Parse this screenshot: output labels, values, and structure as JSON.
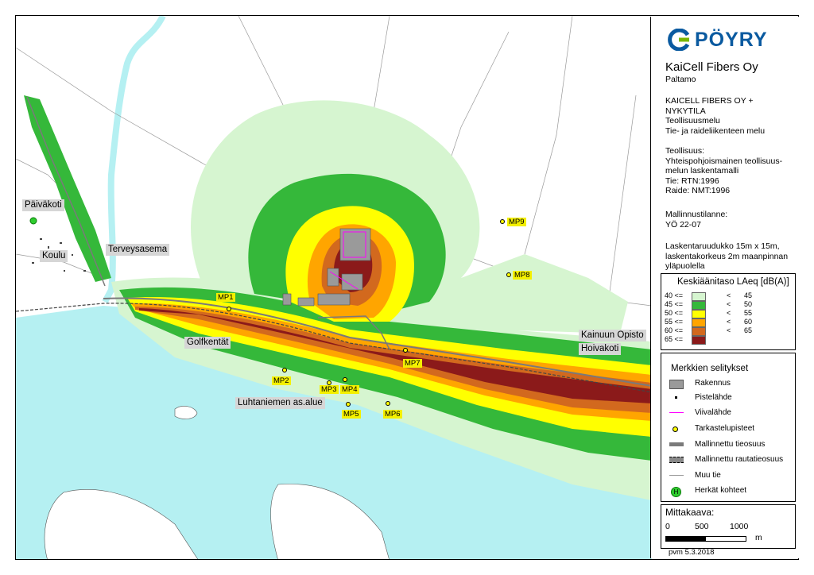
{
  "logo": {
    "text": "PÖYRY"
  },
  "header": {
    "company": "KaiCell Fibers Oy",
    "location": "Paltamo",
    "title_lines": [
      "KAICELL FIBERS OY +",
      "NYKYTILA",
      "Teollisuusmelu",
      "Tie- ja raideliikenteen melu"
    ],
    "model_lines": [
      "Teollisuus:",
      "Yhteispohjoismainen teollisuus-",
      "melun laskentamalli",
      "Tie: RTN:1996",
      "Raide: NMT:1996"
    ],
    "scenario_lines": [
      "Mallinnustilanne:",
      "YÖ 22-07"
    ],
    "grid_lines": [
      "Laskentaruudukko 15m x 15m,",
      "laskentakorkeus 2m maanpinnan",
      "yläpuolella"
    ]
  },
  "noise_legend": {
    "title": "Keskiäänitaso LAeq [dB(A)]",
    "items": [
      {
        "from": "40 <=",
        "op": "<",
        "to": "45",
        "color": "#d6f5d0"
      },
      {
        "from": "45 <=",
        "op": "<",
        "to": "50",
        "color": "#35b83a"
      },
      {
        "from": "50 <=",
        "op": "<",
        "to": "55",
        "color": "#ffff00"
      },
      {
        "from": "55 <=",
        "op": "<",
        "to": "60",
        "color": "#ffa500"
      },
      {
        "from": "60 <=",
        "op": "<",
        "to": "65",
        "color": "#d2691e"
      },
      {
        "from": "65 <=",
        "op": "",
        "to": "",
        "color": "#8b1a1a"
      }
    ]
  },
  "symbol_legend": {
    "title": "Merkkien selitykset",
    "items": [
      {
        "label": "Rakennus",
        "icon": "building-icon"
      },
      {
        "label": "Pistelähde",
        "icon": "point-source-icon"
      },
      {
        "label": "Viivalähde",
        "icon": "line-source-icon"
      },
      {
        "label": "Tarkastelupisteet",
        "icon": "check-point-icon"
      },
      {
        "label": "Mallinnettu tieosuus",
        "icon": "road-icon"
      },
      {
        "label": "Mallinnettu rautatieosuus",
        "icon": "railway-icon"
      },
      {
        "label": "Muu tie",
        "icon": "other-road-icon"
      },
      {
        "label": "Herkät kohteet",
        "icon": "sensitive-site-icon",
        "glyph": "H"
      }
    ]
  },
  "scale": {
    "title": "Mittakaava:",
    "ticks": [
      "0",
      "500",
      "1000"
    ],
    "unit": "m"
  },
  "date": "pvm 5.3.2018",
  "places": [
    {
      "label": "Päiväkoti"
    },
    {
      "label": "Koulu"
    },
    {
      "label": "Terveysasema"
    },
    {
      "label": "Golfkentät"
    },
    {
      "label": "Luhtaniemen as.alue"
    },
    {
      "label": "Kainuun Opisto"
    },
    {
      "label": "Hoivakoti"
    }
  ],
  "measure_points": [
    "MP1",
    "MP2",
    "MP3",
    "MP4",
    "MP5",
    "MP6",
    "MP7",
    "MP8",
    "MP9"
  ],
  "colors": {
    "water": "#b5f0f2",
    "zone40": "#d6f5d0",
    "zone45": "#35b83a",
    "zone50": "#ffff00",
    "zone55": "#ffa500",
    "zone60": "#d2691e",
    "zone65": "#8b1a1a",
    "label_bg": "#d6d6d6",
    "mp_bg": "#f4f000"
  }
}
